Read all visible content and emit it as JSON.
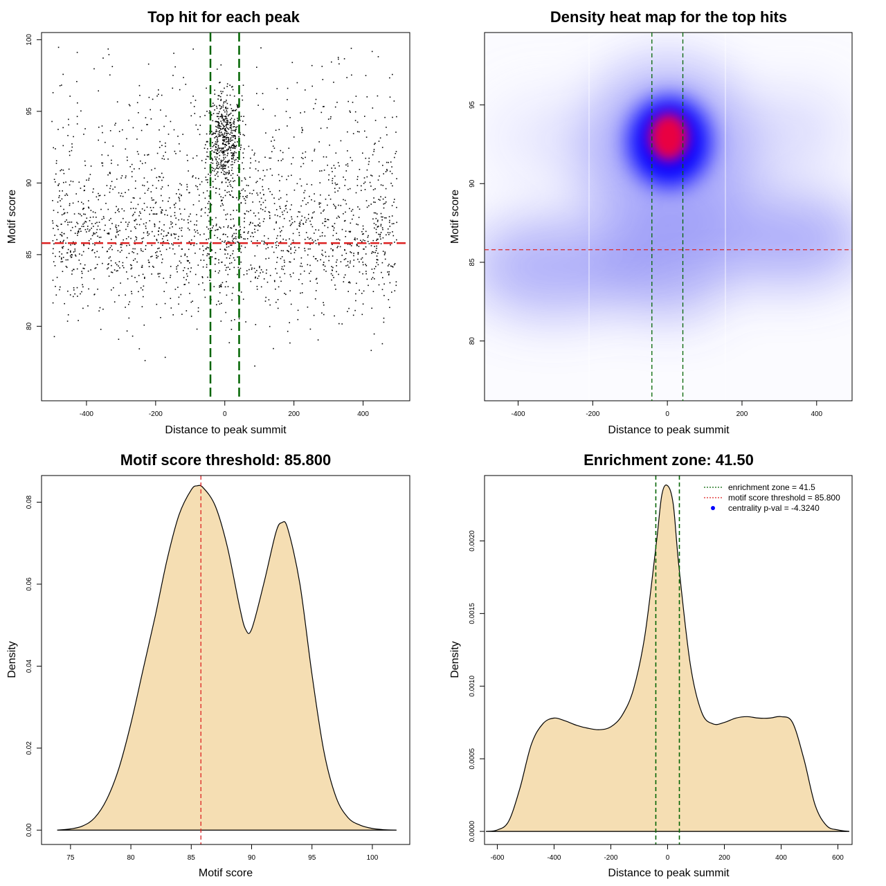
{
  "colors": {
    "threshold_line": "#dd2222",
    "zone_line": "#006400",
    "density_fill": "#f5deb3",
    "heat_low": "#ffffff",
    "heat_mid": "#0000ff",
    "heat_high": "#ff0000",
    "points": "#000000",
    "pval_dot": "#0000ff"
  },
  "chart_data": [
    {
      "type": "scatter",
      "title": "Top hit for each peak",
      "xlabel": "Distance to peak summit",
      "ylabel": "Motif score",
      "xlim": [
        -530,
        535
      ],
      "ylim": [
        74.8,
        100.5
      ],
      "x_ticks": [
        -400,
        -200,
        0,
        200,
        400
      ],
      "y_ticks": [
        80,
        85,
        90,
        95,
        100
      ],
      "x_tick_labels": [
        "-400",
        "-200",
        "0",
        "200",
        "400"
      ],
      "y_tick_labels": [
        "80",
        "85",
        "90",
        "95",
        "100"
      ],
      "threshold_y": 85.8,
      "zone_x": [
        -41.5,
        41.5
      ],
      "point_count_estimate": 2600,
      "clusters": [
        {
          "center_x": 0,
          "center_y": 93,
          "sd_x": 25,
          "sd_y": 1.6,
          "weight": 0.2
        },
        {
          "center_x": 0,
          "center_y": 86,
          "sd_x": 300,
          "sd_y": 2.6,
          "weight": 0.55
        },
        {
          "center_x": 0,
          "center_y": 91,
          "sd_x": 300,
          "sd_y": 4.5,
          "weight": 0.25
        }
      ]
    },
    {
      "type": "heatmap",
      "title": "Density heat map for the top hits",
      "xlabel": "Distance to peak summit",
      "ylabel": "Motif score",
      "xlim": [
        -490,
        495
      ],
      "ylim": [
        76.2,
        99.6
      ],
      "x_ticks": [
        -400,
        -200,
        0,
        200,
        400
      ],
      "y_ticks": [
        80,
        85,
        90,
        95
      ],
      "x_tick_labels": [
        "-400",
        "-200",
        "0",
        "200",
        "400"
      ],
      "y_tick_labels": [
        "80",
        "85",
        "90",
        "95"
      ],
      "threshold_y": 85.8,
      "zone_x": [
        -41.5,
        41.5
      ],
      "hot_spot": {
        "x": 0,
        "y": 92.9
      }
    },
    {
      "type": "area",
      "title": "Motif score threshold: 85.800",
      "xlabel": "Motif score",
      "ylabel": "Density",
      "xlim": [
        72.6,
        103.1
      ],
      "ylim": [
        -0.0035,
        0.0865
      ],
      "x_ticks": [
        75,
        80,
        85,
        90,
        95,
        100
      ],
      "y_ticks": [
        0.0,
        0.02,
        0.04,
        0.06,
        0.08
      ],
      "x_tick_labels": [
        "75",
        "80",
        "85",
        "90",
        "95",
        "100"
      ],
      "y_tick_labels": [
        "0.00",
        "0.02",
        "0.04",
        "0.06",
        "0.08"
      ],
      "x": [
        73.9,
        75.0,
        76.0,
        77.0,
        78.0,
        79.0,
        80.0,
        81.0,
        82.0,
        83.0,
        84.0,
        85.0,
        85.5,
        86.0,
        87.0,
        88.0,
        89.0,
        89.5,
        90.0,
        91.0,
        92.0,
        92.5,
        93.0,
        94.0,
        95.0,
        96.0,
        97.0,
        98.0,
        99.0,
        100.0,
        101.0,
        102.0
      ],
      "y": [
        0.0,
        0.0003,
        0.001,
        0.003,
        0.0075,
        0.015,
        0.026,
        0.039,
        0.052,
        0.066,
        0.077,
        0.083,
        0.084,
        0.0835,
        0.079,
        0.069,
        0.0545,
        0.049,
        0.049,
        0.06,
        0.0725,
        0.075,
        0.0735,
        0.06,
        0.038,
        0.019,
        0.008,
        0.003,
        0.0012,
        0.0004,
        0.0001,
        0.0
      ],
      "threshold_x": 85.8
    },
    {
      "type": "area",
      "title": "Enrichment zone: 41.50",
      "xlabel": "Distance to peak summit",
      "ylabel": "Density",
      "xlim": [
        -645,
        650
      ],
      "ylim": [
        -9e-05,
        0.00245
      ],
      "x_ticks": [
        -600,
        -400,
        -200,
        0,
        200,
        400,
        600
      ],
      "y_ticks": [
        0.0,
        0.0005,
        0.001,
        0.0015,
        0.002
      ],
      "x_tick_labels": [
        "-600",
        "-400",
        "-200",
        "0",
        "200",
        "400",
        "600"
      ],
      "y_tick_labels": [
        "0.0000",
        "0.0005",
        "0.0010",
        "0.0015",
        "0.0020"
      ],
      "x": [
        -640,
        -600,
        -560,
        -520,
        -480,
        -440,
        -400,
        -360,
        -320,
        -280,
        -240,
        -200,
        -160,
        -120,
        -80,
        -40,
        -20,
        0,
        20,
        40,
        80,
        120,
        160,
        200,
        240,
        280,
        320,
        360,
        400,
        440,
        480,
        520,
        560,
        600,
        640
      ],
      "y": [
        0.0,
        1e-05,
        7e-05,
        0.0003,
        0.0006,
        0.00074,
        0.00078,
        0.00076,
        0.00073,
        0.00071,
        0.0007,
        0.00072,
        0.0008,
        0.00098,
        0.00135,
        0.00198,
        0.00232,
        0.00238,
        0.00225,
        0.00182,
        0.00115,
        0.00082,
        0.00074,
        0.00075,
        0.00078,
        0.00079,
        0.00078,
        0.00078,
        0.00079,
        0.00075,
        0.0005,
        0.00018,
        4e-05,
        1e-05,
        0.0
      ],
      "zone_x": [
        -41.5,
        41.5
      ],
      "legend_placement": "top-right",
      "legend": [
        {
          "label": "enrichment zone = 41.5",
          "kind": "dotted-line",
          "color": "#006400"
        },
        {
          "label": "motif score threshold = 85.800",
          "kind": "dotted-line",
          "color": "#dd2222"
        },
        {
          "label": "centrality p-val = -4.3240",
          "kind": "dot",
          "color": "#0000ff"
        }
      ]
    }
  ]
}
